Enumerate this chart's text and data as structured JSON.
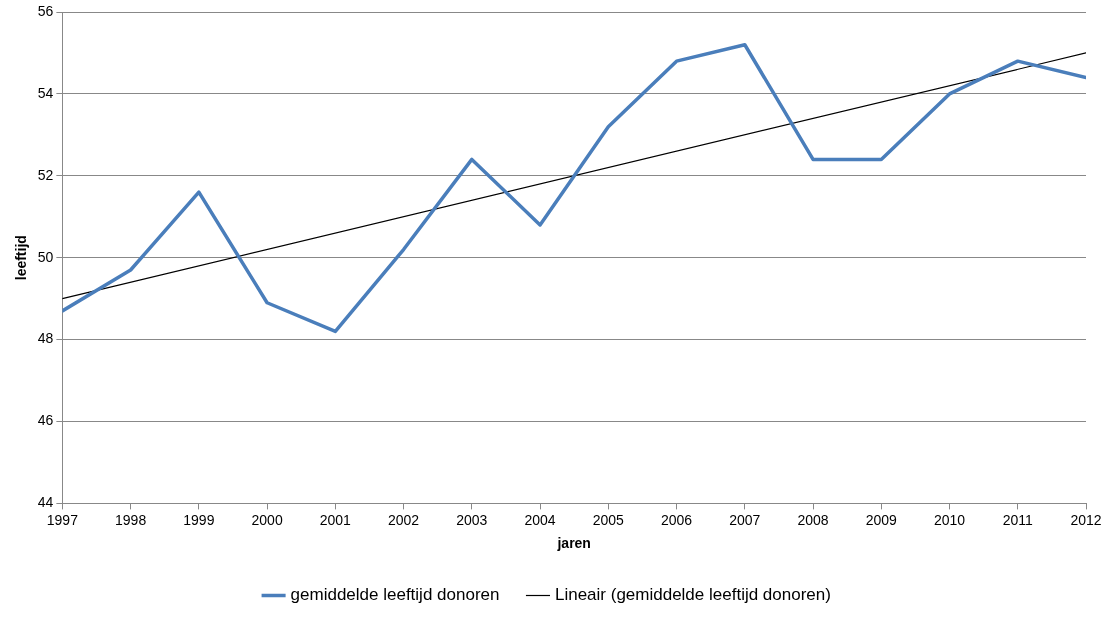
{
  "chart_data": {
    "type": "line",
    "xlabel": "jaren",
    "ylabel": "leeftijd",
    "x": [
      1997,
      1998,
      1999,
      2000,
      2001,
      2002,
      2003,
      2004,
      2005,
      2006,
      2007,
      2008,
      2009,
      2010,
      2011,
      2012
    ],
    "series": [
      {
        "name": "gemiddelde leeftijd donoren",
        "color": "#4a7ebb",
        "values": [
          48.7,
          49.7,
          51.6,
          48.9,
          48.2,
          50.2,
          52.4,
          50.8,
          53.2,
          54.8,
          55.2,
          52.4,
          52.4,
          54.0,
          54.8,
          54.4
        ]
      },
      {
        "name": "Lineair (gemiddelde leeftijd donoren)",
        "color": "#000000",
        "type": "line",
        "x": [
          1997,
          2012
        ],
        "values": [
          49.0,
          55.0
        ]
      }
    ],
    "xlim": [
      1997,
      2012
    ],
    "xticks": [
      1997,
      1998,
      1999,
      2000,
      2001,
      2002,
      2003,
      2004,
      2005,
      2006,
      2007,
      2008,
      2009,
      2010,
      2011,
      2012
    ],
    "ylim": [
      44,
      56
    ],
    "yticks": [
      44,
      46,
      48,
      50,
      52,
      54,
      56
    ],
    "grid": "y",
    "legend": "bottom",
    "marker": "none",
    "line_style": "solid"
  }
}
